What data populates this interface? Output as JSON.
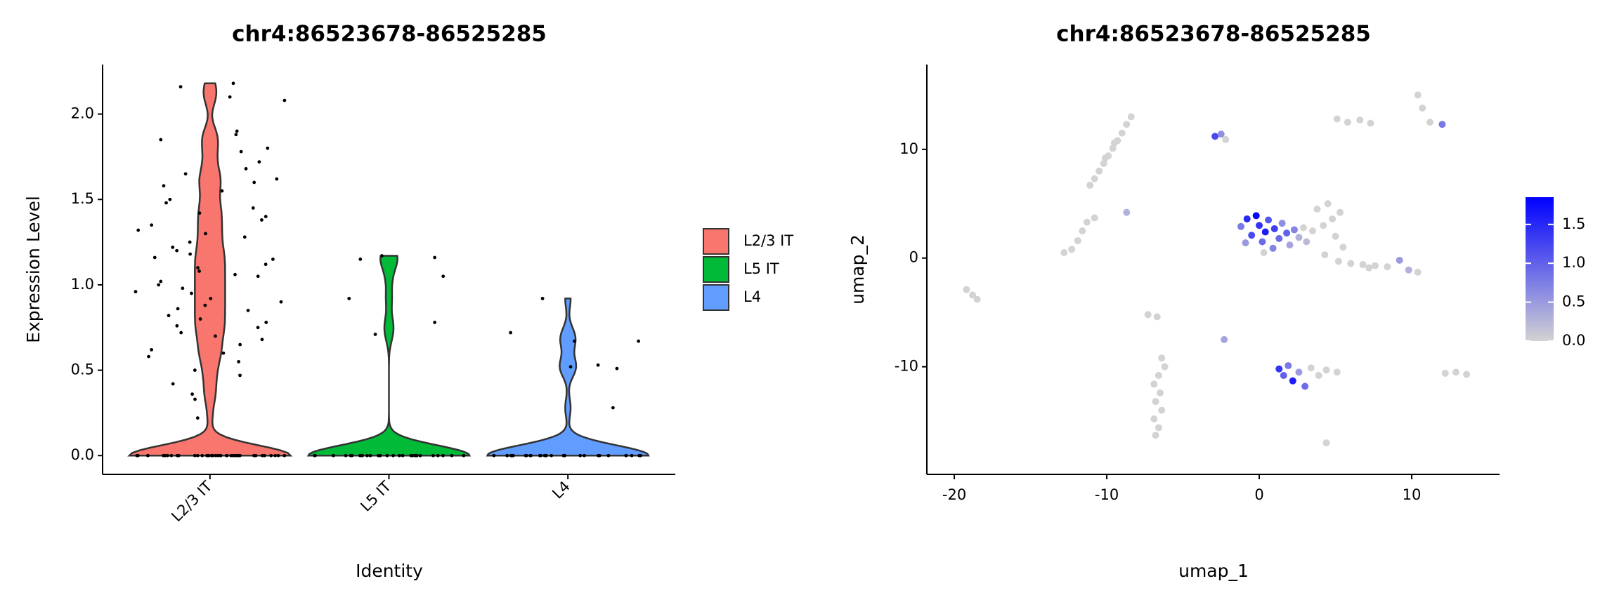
{
  "chart_data": [
    {
      "type": "violin",
      "title": "chr4:86523678-86525285",
      "x_label": "Identity",
      "y_label": "Expression Level",
      "categories": [
        "L2/3 IT",
        "L5 IT",
        "L4"
      ],
      "colors": [
        "#F8766D",
        "#00BA38",
        "#619CFF"
      ],
      "values": [
        [
          2.18,
          2.16,
          2.1,
          2.08,
          1.9,
          1.88,
          1.85,
          1.8,
          1.78,
          1.72,
          1.68,
          1.65,
          1.6,
          1.58,
          1.55,
          1.5,
          1.48,
          1.45,
          1.4,
          1.38,
          1.35,
          1.3,
          1.28,
          1.25,
          1.2,
          1.18,
          1.15,
          1.12,
          1.1,
          1.08,
          1.05,
          1.02,
          1,
          0.98,
          0.95,
          0.92,
          0.9,
          0.88,
          0.85,
          0.82,
          0.8,
          0.78,
          0.75,
          0.72,
          0.7,
          0.68,
          0.65,
          0.62,
          0.6,
          0.58,
          0.55,
          0.5,
          0.47,
          0.42,
          0.36,
          0.33,
          0.22,
          1.62,
          1.42,
          1.32,
          1.22,
          1.16,
          1.06,
          0.96,
          0.86,
          0.76,
          0,
          0,
          0,
          0,
          0,
          0,
          0,
          0,
          0,
          0,
          0,
          0,
          0,
          0,
          0,
          0,
          0,
          0,
          0,
          0,
          0,
          0,
          0,
          0,
          0,
          0,
          0,
          0,
          0,
          0,
          0,
          0,
          0,
          0,
          0,
          0,
          0,
          0,
          0,
          0
        ],
        [
          1.17,
          1.16,
          1.15,
          1.05,
          0.92,
          0.78,
          0.71,
          0,
          0,
          0,
          0,
          0,
          0,
          0,
          0,
          0,
          0,
          0,
          0,
          0,
          0,
          0,
          0,
          0,
          0,
          0,
          0,
          0,
          0,
          0,
          0,
          0,
          0,
          0,
          0,
          0,
          0
        ],
        [
          0.92,
          0.72,
          0.67,
          0.67,
          0.53,
          0.52,
          0.51,
          0.28,
          0,
          0,
          0,
          0,
          0,
          0,
          0,
          0,
          0,
          0,
          0,
          0,
          0,
          0,
          0,
          0,
          0,
          0,
          0,
          0,
          0,
          0,
          0,
          0,
          0,
          0,
          0,
          0,
          0,
          0
        ]
      ],
      "ylim": [
        -0.11,
        2.29
      ],
      "yticks": [
        {
          "value": 0,
          "label": "0.0"
        },
        {
          "value": 0.5,
          "label": "0.5"
        },
        {
          "value": 1,
          "label": "1.0"
        },
        {
          "value": 1.5,
          "label": "1.5"
        },
        {
          "value": 2,
          "label": "2.0"
        }
      ],
      "legend": "right",
      "grid": false
    },
    {
      "type": "feature_scatter",
      "title": "chr4:86523678-86525285",
      "x_label": "umap_1",
      "y_label": "umap_2",
      "x": [
        -8.4,
        -8.7,
        -9,
        -9.3,
        -9.6,
        -9.9,
        -10.2,
        -10.5,
        -10.8,
        -11.1,
        -9.5,
        -10.1,
        -10.8,
        -11.3,
        -11.6,
        -11.9,
        -12.3,
        -12.8,
        -8.7,
        -19.2,
        -18.8,
        -18.5,
        -7.3,
        -6.7,
        -6.4,
        -6.2,
        -6.6,
        -6.9,
        -6.5,
        -6.8,
        -6.4,
        -6.9,
        -6.6,
        -6.8,
        -2.3,
        -2.9,
        -2.5,
        -2.2,
        5.1,
        5.8,
        6.6,
        7.3,
        10.4,
        10.7,
        11.2,
        12,
        3.5,
        3.8,
        4.2,
        4.5,
        4.8,
        5,
        5.3,
        5.5,
        4.3,
        5.2,
        6,
        6.8,
        7.6,
        8.4,
        9.2,
        9.8,
        10.4,
        7.2,
        3.4,
        3.9,
        4.4,
        5.1,
        12.2,
        12.9,
        13.6,
        4.4,
        -1.2,
        -0.8,
        -0.5,
        -0.2,
        0,
        0.2,
        0.4,
        0.6,
        0.9,
        1,
        1.3,
        1.5,
        1.8,
        2,
        2.3,
        2.6,
        2.9,
        3.1,
        -0.9,
        0.3,
        1.3,
        1.6,
        1.9,
        2.2,
        2.6,
        3
      ],
      "y": [
        13,
        12.3,
        11.5,
        10.8,
        10.1,
        9.4,
        8.7,
        8,
        7.3,
        6.7,
        10.6,
        9.2,
        3.7,
        3.3,
        2.5,
        1.6,
        0.8,
        0.5,
        4.2,
        -2.9,
        -3.4,
        -3.8,
        -5.2,
        -5.4,
        -9.2,
        -10,
        -10.8,
        -11.6,
        -12.4,
        -13.2,
        -14,
        -14.8,
        -15.6,
        -16.3,
        -7.5,
        11.2,
        11.4,
        10.9,
        12.8,
        12.5,
        12.7,
        12.4,
        15,
        13.8,
        12.5,
        12.3,
        2.5,
        4.5,
        3,
        5,
        3.6,
        2,
        4.2,
        1,
        0.3,
        -0.3,
        -0.5,
        -0.6,
        -0.7,
        -0.8,
        -0.2,
        -1.1,
        -1.3,
        -0.9,
        -10.1,
        -10.8,
        -10.3,
        -10.5,
        -10.6,
        -10.5,
        -10.7,
        -17,
        2.9,
        3.6,
        2.1,
        3.9,
        3,
        1.5,
        2.4,
        3.5,
        0.9,
        2.7,
        1.8,
        3.2,
        2.3,
        1.2,
        2.6,
        1.9,
        2.8,
        1.5,
        1.4,
        0.5,
        -10.2,
        -10.8,
        -9.9,
        -11.3,
        -10.5,
        -11.8
      ],
      "values": [
        0,
        0,
        0,
        0,
        0,
        0,
        0,
        0,
        0,
        0,
        0,
        0,
        0,
        0,
        0,
        0,
        0,
        0,
        0.3,
        0,
        0,
        0,
        0,
        0,
        0,
        0,
        0,
        0,
        0,
        0,
        0,
        0,
        0,
        0,
        0.4,
        1.2,
        0.6,
        0,
        0,
        0,
        0,
        0,
        0,
        0,
        0,
        0.8,
        0,
        0,
        0,
        0,
        0,
        0,
        0,
        0,
        0,
        0,
        0,
        0,
        0,
        0,
        0.5,
        0.3,
        0,
        0,
        0,
        0,
        0,
        0,
        0,
        0,
        0,
        0,
        0.8,
        1.5,
        1.2,
        1.8,
        1.4,
        0.9,
        1.6,
        1.1,
        0.7,
        1.3,
        0.9,
        0.6,
        1,
        0.4,
        0.7,
        0.3,
        0,
        0.2,
        0.5,
        0,
        1.4,
        1,
        0.8,
        1.6,
        0.5,
        0.9
      ],
      "xlim": [
        -21.8,
        15.76
      ],
      "ylim": [
        -19.9,
        17.8
      ],
      "xticks": [
        -20,
        -10,
        0,
        10
      ],
      "yticks": [
        -10,
        0,
        10
      ],
      "colorscale": {
        "low": "#d3d3d3",
        "high": "#0000ff",
        "lim": [
          0,
          1.85
        ],
        "ticks": [
          {
            "value": 0,
            "label": "0.0"
          },
          {
            "value": 0.5,
            "label": "0.5"
          },
          {
            "value": 1,
            "label": "1.0"
          },
          {
            "value": 1.5,
            "label": "1.5"
          }
        ]
      },
      "grid": false
    }
  ]
}
